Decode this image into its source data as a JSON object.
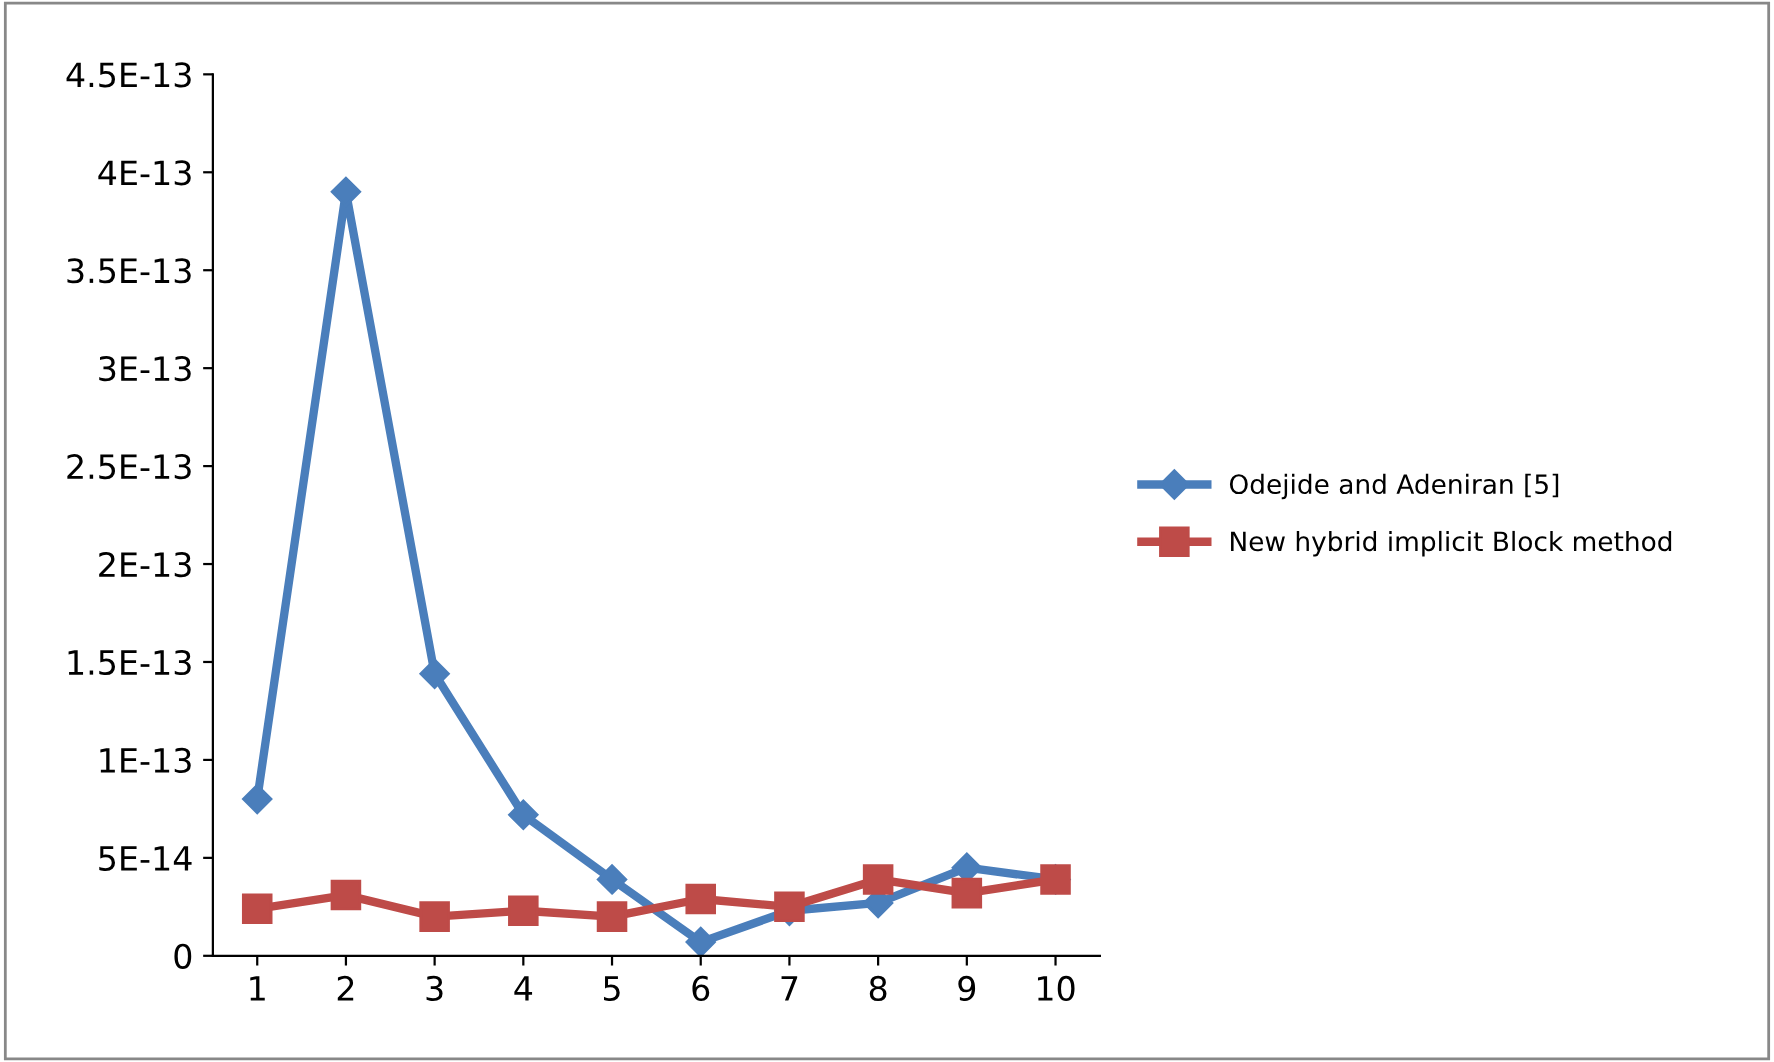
{
  "chart_data": {
    "type": "line",
    "categories": [
      "1",
      "2",
      "3",
      "4",
      "5",
      "6",
      "7",
      "8",
      "9",
      "10"
    ],
    "series": [
      {
        "name": "Odejide and Adeniran [5]",
        "color": "#4a7ebb",
        "marker": "diamond",
        "values": [
          8e-14,
          3.9e-13,
          1.44e-13,
          7.2e-14,
          3.9e-14,
          7e-15,
          2.3e-14,
          2.7e-14,
          4.5e-14,
          3.9e-14
        ]
      },
      {
        "name": "New hybrid implicit Block method",
        "color": "#be4b48",
        "marker": "square",
        "values": [
          2.4e-14,
          3.1e-14,
          2e-14,
          2.3e-14,
          2e-14,
          2.9e-14,
          2.5e-14,
          3.9e-14,
          3.2e-14,
          3.9e-14
        ]
      }
    ],
    "ylim": [
      0,
      4.5e-13
    ],
    "yticks": [
      0,
      {
        "value": 5e-14,
        "label": "5E-14"
      },
      {
        "value": 1e-13,
        "label": "1E-13"
      },
      {
        "value": 1.5e-13,
        "label": "1.5E-13"
      },
      {
        "value": 2e-13,
        "label": "2E-13"
      },
      {
        "value": 2.5e-13,
        "label": "2.5E-13"
      },
      {
        "value": 3e-13,
        "label": "3E-13"
      },
      {
        "value": 3.5e-13,
        "label": "3.5E-13"
      },
      {
        "value": 4e-13,
        "label": "4E-13"
      },
      {
        "value": 4.5e-13,
        "label": "4.5E-13"
      }
    ],
    "grid": false,
    "legend": "right",
    "line_style": "solid"
  }
}
